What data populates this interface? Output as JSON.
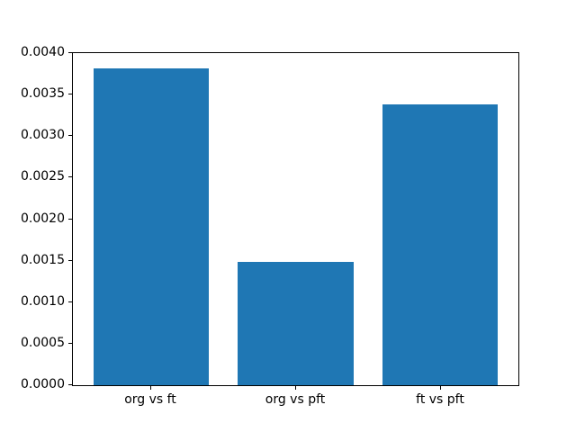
{
  "chart_data": {
    "type": "bar",
    "title": "",
    "xlabel": "",
    "ylabel": "",
    "categories": [
      "org vs ft",
      "org vs pft",
      "ft vs pft"
    ],
    "values": [
      0.00382,
      0.00149,
      0.00338
    ],
    "ylim": [
      0,
      0.004
    ],
    "yticks": [
      "0.0000",
      "0.0005",
      "0.0010",
      "0.0015",
      "0.0020",
      "0.0025",
      "0.0030",
      "0.0035",
      "0.0040"
    ],
    "bar_color": "#1f77b4",
    "background_color": "#ffffff",
    "axis_color": "#000000",
    "legend_position": "none",
    "grid": false
  }
}
